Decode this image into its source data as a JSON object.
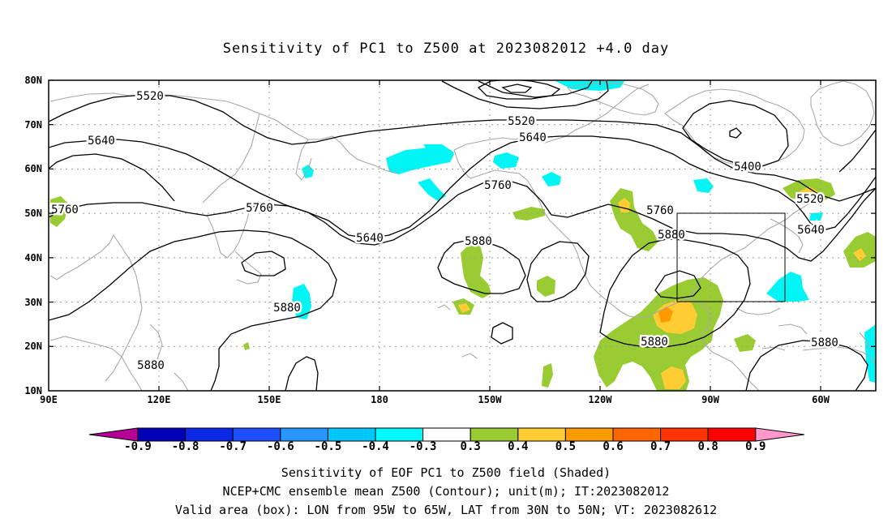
{
  "title": "Sensitivity of PC1 to Z500 at 2023082012 +4.0 day",
  "map": {
    "lat_ticks": [
      "80N",
      "70N",
      "60N",
      "50N",
      "40N",
      "30N",
      "20N",
      "10N"
    ],
    "lon_ticks": [
      "90E",
      "120E",
      "150E",
      "180",
      "150W",
      "120W",
      "90W",
      "60W"
    ],
    "contour_labels": [
      "5520",
      "5520",
      "5640",
      "5640",
      "5640",
      "5640",
      "5760",
      "5760",
      "5760",
      "5760",
      "5880",
      "5880",
      "5880",
      "5880",
      "5880",
      "5880",
      "5400",
      "5520"
    ],
    "valid_box": {
      "lon_from": "95W",
      "lon_to": "65W",
      "lat_from": "30N",
      "lat_to": "50N"
    },
    "colors": {
      "coastline": "#a8a8a8",
      "contour": "#000000",
      "grid": "#9a9a9a",
      "valid_box": "#000000",
      "cyan_shade": "#00f5f5",
      "green_shade": "#99cc33",
      "yellow_shade": "#ffcc33",
      "orange_shade": "#ff9900"
    }
  },
  "colorbar": {
    "labels": [
      "-0.9",
      "-0.8",
      "-0.7",
      "-0.6",
      "-0.5",
      "-0.4",
      "-0.3",
      "0.3",
      "0.4",
      "0.5",
      "0.6",
      "0.7",
      "0.8",
      "0.9"
    ],
    "colors": [
      "#b40096",
      "#0000b4",
      "#0a28e6",
      "#1e50ff",
      "#2896ff",
      "#00c8ff",
      "#00fafa",
      "#ffffff",
      "#99cc33",
      "#ffcc33",
      "#ff9900",
      "#ff6600",
      "#ff3300",
      "#ff0000",
      "#ff99cc"
    ]
  },
  "captions": [
    "Sensitivity of EOF PC1 to Z500 field (Shaded)",
    "NCEP+CMC ensemble mean Z500 (Contour); unit(m); IT:2023082012",
    "Valid area (box): LON from 95W to 65W, LAT from 30N to 50N; VT: 2023082612"
  ]
}
